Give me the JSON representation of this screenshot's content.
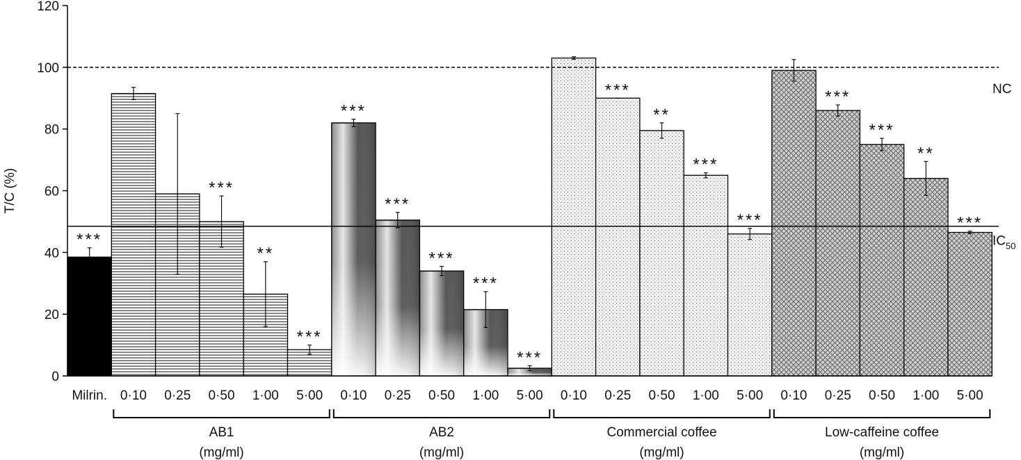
{
  "chart_data": {
    "type": "bar",
    "ylabel": "T/C (%)",
    "ylim": [
      0,
      120
    ],
    "yticks": [
      "0",
      "20",
      "40",
      "60",
      "80",
      "100",
      "120"
    ],
    "reference_lines": [
      {
        "label": "NC",
        "value": 100,
        "style": "dashed"
      },
      {
        "label": "IC",
        "subscript": "50",
        "value": 48.5,
        "style": "solid"
      }
    ],
    "groups": [
      {
        "name": "AB1",
        "unit": "(mg/ml)"
      },
      {
        "name": "AB2",
        "unit": "(mg/ml)"
      },
      {
        "name": "Commercial coffee",
        "unit": "(mg/ml)"
      },
      {
        "name": "Low-caffeine coffee",
        "unit": "(mg/ml)"
      }
    ],
    "bars": [
      {
        "label": "Milrin.",
        "group": null,
        "value": 38.5,
        "error": 3,
        "sig": "***",
        "pattern": "solid-black"
      },
      {
        "label": "0·10",
        "group": "AB1",
        "value": 91.5,
        "error": 2,
        "sig": "",
        "pattern": "hlines"
      },
      {
        "label": "0·25",
        "group": "AB1",
        "value": 59,
        "error": 26,
        "sig": "",
        "pattern": "hlines"
      },
      {
        "label": "0·50",
        "group": "AB1",
        "value": 50,
        "error": 8.3,
        "sig": "***",
        "pattern": "hlines"
      },
      {
        "label": "1·00",
        "group": "AB1",
        "value": 26.5,
        "error": 10.5,
        "sig": "**",
        "pattern": "hlines"
      },
      {
        "label": "5·00",
        "group": "AB1",
        "value": 8.5,
        "error": 1.5,
        "sig": "***",
        "pattern": "hlines"
      },
      {
        "label": "0·10",
        "group": "AB2",
        "value": 82,
        "error": 1.2,
        "sig": "***",
        "pattern": "gradient"
      },
      {
        "label": "0·25",
        "group": "AB2",
        "value": 50.5,
        "error": 2.5,
        "sig": "***",
        "pattern": "gradient"
      },
      {
        "label": "0·50",
        "group": "AB2",
        "value": 34,
        "error": 1.5,
        "sig": "***",
        "pattern": "gradient"
      },
      {
        "label": "1·00",
        "group": "AB2",
        "value": 21.5,
        "error": 5.8,
        "sig": "***",
        "pattern": "gradient"
      },
      {
        "label": "5·00",
        "group": "AB2",
        "value": 2.5,
        "error": 0.8,
        "sig": "***",
        "pattern": "gradient"
      },
      {
        "label": "0·10",
        "group": "Commercial coffee",
        "value": 103,
        "error": 0.4,
        "sig": "",
        "pattern": "dots"
      },
      {
        "label": "0·25",
        "group": "Commercial coffee",
        "value": 90,
        "error": 0,
        "sig": "***",
        "pattern": "dots"
      },
      {
        "label": "0·50",
        "group": "Commercial coffee",
        "value": 79.5,
        "error": 2.5,
        "sig": "**",
        "pattern": "dots"
      },
      {
        "label": "1·00",
        "group": "Commercial coffee",
        "value": 65,
        "error": 0.8,
        "sig": "***",
        "pattern": "dots"
      },
      {
        "label": "5·00",
        "group": "Commercial coffee",
        "value": 46,
        "error": 1.8,
        "sig": "***",
        "pattern": "dots"
      },
      {
        "label": "0·10",
        "group": "Low-caffeine coffee",
        "value": 99,
        "error": 3.5,
        "sig": "",
        "pattern": "cross"
      },
      {
        "label": "0·25",
        "group": "Low-caffeine coffee",
        "value": 86,
        "error": 1.8,
        "sig": "***",
        "pattern": "cross"
      },
      {
        "label": "0·50",
        "group": "Low-caffeine coffee",
        "value": 75,
        "error": 2,
        "sig": "***",
        "pattern": "cross"
      },
      {
        "label": "1·00",
        "group": "Low-caffeine coffee",
        "value": 64,
        "error": 5.5,
        "sig": "**",
        "pattern": "cross"
      },
      {
        "label": "5·00",
        "group": "Low-caffeine coffee",
        "value": 46.5,
        "error": 0.4,
        "sig": "***",
        "pattern": "cross"
      }
    ],
    "legend": "none",
    "grid": false
  }
}
